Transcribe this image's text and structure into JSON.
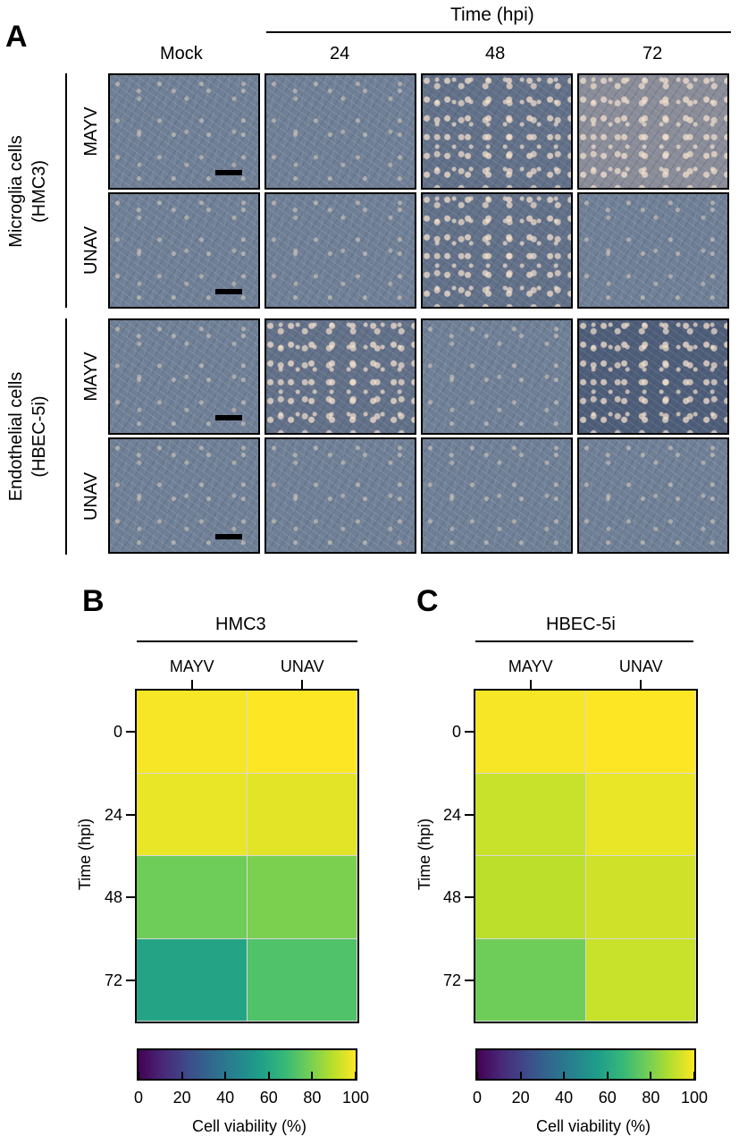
{
  "panel_a": {
    "letter": "A",
    "time_header": "Time (hpi)",
    "columns": [
      "Mock",
      "24",
      "48",
      "72"
    ],
    "group1_label_line1": "Microglia cells",
    "group1_label_line2": "(HMC3)",
    "group2_label_line1": "Endothelial cells",
    "group2_label_line2": "(HBEC-5i)",
    "row_labels": [
      "MAYV",
      "UNAV",
      "MAYV",
      "UNAV"
    ]
  },
  "chart_data": [
    {
      "type": "heatmap",
      "panel": "B",
      "title": "HMC3",
      "ylabel": "Time (hpi)",
      "colorbar_label": "Cell viability (%)",
      "columns": [
        "MAYV",
        "UNAV"
      ],
      "rows": [
        "0",
        "24",
        "48",
        "72"
      ],
      "values": [
        [
          99,
          100
        ],
        [
          97,
          96
        ],
        [
          78,
          80
        ],
        [
          58,
          72
        ]
      ],
      "colorbar_ticks": [
        "0",
        "20",
        "40",
        "60",
        "80",
        "100"
      ],
      "vmin": 0,
      "vmax": 100,
      "colormap": "viridis"
    },
    {
      "type": "heatmap",
      "panel": "C",
      "title": "HBEC-5i",
      "ylabel": "Time (hpi)",
      "colorbar_label": "Cell viability (%)",
      "columns": [
        "MAYV",
        "UNAV"
      ],
      "rows": [
        "0",
        "24",
        "48",
        "72"
      ],
      "values": [
        [
          99,
          100
        ],
        [
          92,
          97
        ],
        [
          90,
          93
        ],
        [
          78,
          92
        ]
      ],
      "colorbar_ticks": [
        "0",
        "20",
        "40",
        "60",
        "80",
        "100"
      ],
      "vmin": 0,
      "vmax": 100,
      "colormap": "viridis"
    }
  ]
}
